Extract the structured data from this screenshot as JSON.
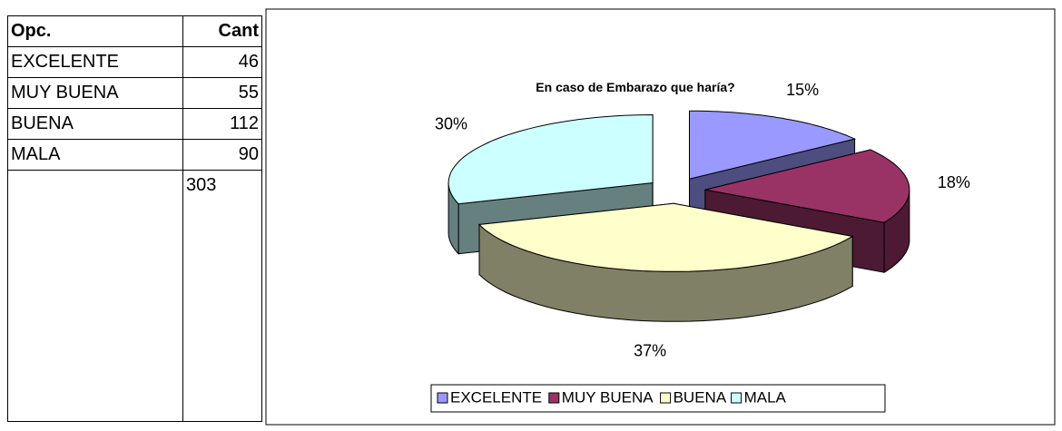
{
  "table": {
    "header": [
      "Opc.",
      "Cant"
    ],
    "rows": [
      [
        "EXCELENTE",
        46
      ],
      [
        "MUY BUENA",
        55
      ],
      [
        "BUENA",
        112
      ],
      [
        "MALA",
        90
      ]
    ],
    "total": 303
  },
  "chart_data": {
    "type": "pie",
    "title": "En caso de Embarazo que haría?",
    "categories": [
      "EXCELENTE",
      "MUY BUENA",
      "BUENA",
      "MALA"
    ],
    "values": [
      15,
      18,
      37,
      30
    ],
    "value_labels": [
      "15%",
      "18%",
      "37%",
      "30%"
    ],
    "colors": [
      "#9999ff",
      "#993366",
      "#ffffcc",
      "#ccffff"
    ],
    "legend": "bottom"
  }
}
